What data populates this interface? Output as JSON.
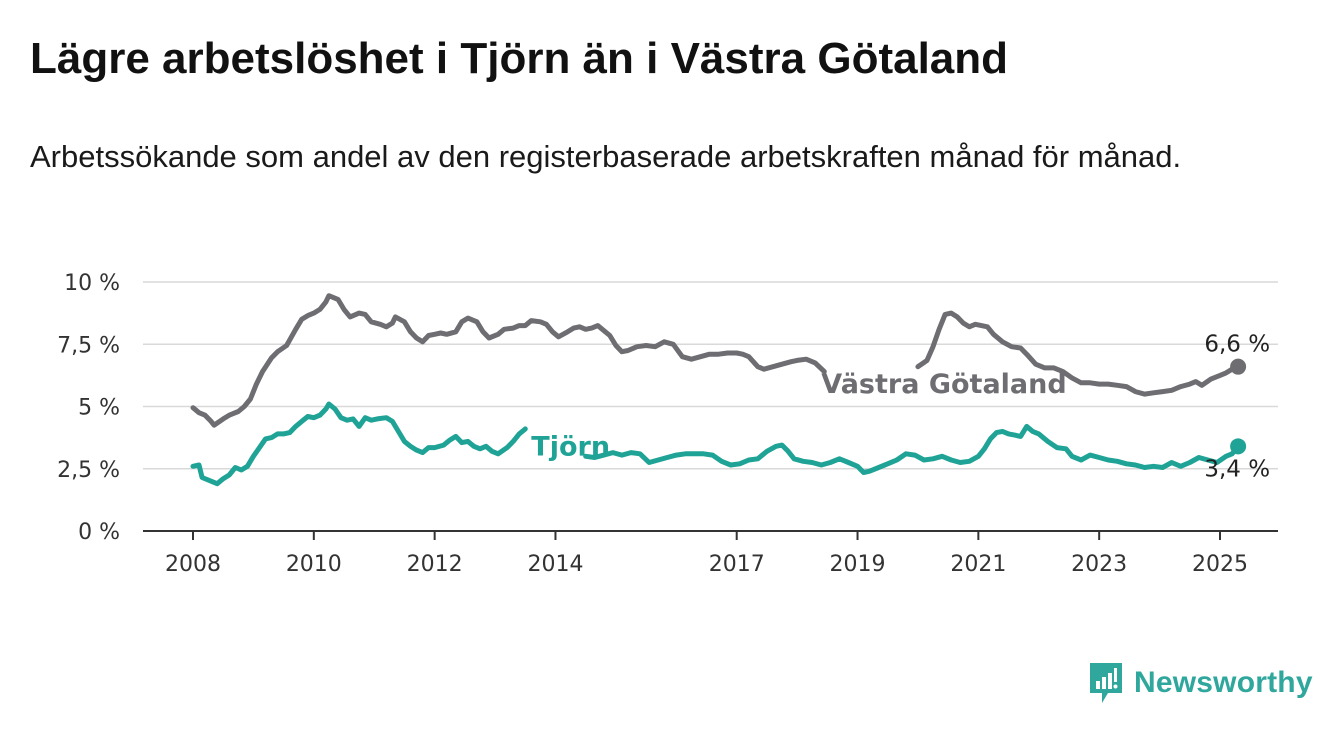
{
  "header": {
    "title": "Lägre arbetslöshet i Tjörn än i Västra Götaland",
    "subtitle": "Arbetssökande som andel av den registerbaserade arbetskraften månad för månad."
  },
  "brand": {
    "name": "Newsworthy",
    "icon": "newsworthy-logo-icon",
    "color": "#2fa79d"
  },
  "chart_data": {
    "type": "line",
    "title": "Lägre arbetslöshet i Tjörn än i Västra Götaland",
    "subtitle": "Arbetssökande som andel av den registerbaserade arbetskraften månad för månad.",
    "xlabel": "",
    "ylabel": "",
    "xlim": [
      2007.7,
      2026.0
    ],
    "ylim": [
      0,
      10
    ],
    "grid": true,
    "legend": "inline labels",
    "x_ticks": [
      {
        "value": 2008,
        "label": "2008"
      },
      {
        "value": 2010,
        "label": "2010"
      },
      {
        "value": 2012,
        "label": "2012"
      },
      {
        "value": 2014,
        "label": "2014"
      },
      {
        "value": 2017,
        "label": "2017"
      },
      {
        "value": 2019,
        "label": "2019"
      },
      {
        "value": 2021,
        "label": "2021"
      },
      {
        "value": 2023,
        "label": "2023"
      },
      {
        "value": 2025,
        "label": "2025"
      }
    ],
    "y_ticks": [
      {
        "value": 0,
        "label": "0 %"
      },
      {
        "value": 2.5,
        "label": "2,5 %"
      },
      {
        "value": 5,
        "label": "5 %"
      },
      {
        "value": 7.5,
        "label": "7,5 %"
      },
      {
        "value": 10,
        "label": "10 %"
      }
    ],
    "series": [
      {
        "name": "Västra Götaland",
        "color": "#6d6d72",
        "end_label": "6,6 %",
        "points": [
          [
            2008.0,
            4.95
          ],
          [
            2008.1,
            4.75
          ],
          [
            2008.2,
            4.65
          ],
          [
            2008.3,
            4.4
          ],
          [
            2008.35,
            4.25
          ],
          [
            2008.5,
            4.5
          ],
          [
            2008.6,
            4.65
          ],
          [
            2008.75,
            4.8
          ],
          [
            2008.85,
            5.0
          ],
          [
            2008.95,
            5.3
          ],
          [
            2009.05,
            5.9
          ],
          [
            2009.15,
            6.4
          ],
          [
            2009.3,
            6.95
          ],
          [
            2009.4,
            7.2
          ],
          [
            2009.55,
            7.45
          ],
          [
            2009.7,
            8.1
          ],
          [
            2009.8,
            8.5
          ],
          [
            2009.9,
            8.65
          ],
          [
            2010.0,
            8.75
          ],
          [
            2010.1,
            8.9
          ],
          [
            2010.2,
            9.2
          ],
          [
            2010.25,
            9.45
          ],
          [
            2010.4,
            9.3
          ],
          [
            2010.5,
            8.9
          ],
          [
            2010.6,
            8.6
          ],
          [
            2010.75,
            8.75
          ],
          [
            2010.85,
            8.7
          ],
          [
            2010.95,
            8.4
          ],
          [
            2011.1,
            8.3
          ],
          [
            2011.2,
            8.2
          ],
          [
            2011.3,
            8.35
          ],
          [
            2011.35,
            8.6
          ],
          [
            2011.5,
            8.4
          ],
          [
            2011.6,
            8.0
          ],
          [
            2011.7,
            7.75
          ],
          [
            2011.8,
            7.6
          ],
          [
            2011.9,
            7.85
          ],
          [
            2012.0,
            7.9
          ],
          [
            2012.1,
            7.95
          ],
          [
            2012.2,
            7.9
          ],
          [
            2012.35,
            8.0
          ],
          [
            2012.45,
            8.4
          ],
          [
            2012.55,
            8.55
          ],
          [
            2012.7,
            8.4
          ],
          [
            2012.8,
            8.0
          ],
          [
            2012.9,
            7.75
          ],
          [
            2013.05,
            7.9
          ],
          [
            2013.15,
            8.1
          ],
          [
            2013.3,
            8.15
          ],
          [
            2013.4,
            8.25
          ],
          [
            2013.5,
            8.25
          ],
          [
            2013.6,
            8.45
          ],
          [
            2013.75,
            8.4
          ],
          [
            2013.85,
            8.3
          ],
          [
            2013.95,
            8.0
          ],
          [
            2014.05,
            7.8
          ],
          [
            2014.2,
            8.0
          ],
          [
            2014.3,
            8.15
          ],
          [
            2014.4,
            8.2
          ],
          [
            2014.5,
            8.1
          ],
          [
            2014.6,
            8.15
          ],
          [
            2014.7,
            8.25
          ],
          [
            2014.8,
            8.05
          ],
          [
            2014.9,
            7.85
          ],
          [
            2015.0,
            7.45
          ],
          [
            2015.1,
            7.2
          ],
          [
            2015.2,
            7.25
          ],
          [
            2015.35,
            7.4
          ],
          [
            2015.5,
            7.45
          ],
          [
            2015.65,
            7.4
          ],
          [
            2015.8,
            7.6
          ],
          [
            2015.95,
            7.5
          ],
          [
            2016.1,
            7.0
          ],
          [
            2016.25,
            6.9
          ],
          [
            2016.4,
            7.0
          ],
          [
            2016.55,
            7.1
          ],
          [
            2016.7,
            7.1
          ],
          [
            2016.85,
            7.15
          ],
          [
            2017.0,
            7.15
          ],
          [
            2017.1,
            7.1
          ],
          [
            2017.2,
            7.0
          ],
          [
            2017.35,
            6.6
          ],
          [
            2017.45,
            6.5
          ],
          [
            2017.6,
            6.6
          ],
          [
            2017.75,
            6.7
          ],
          [
            2017.9,
            6.8
          ],
          [
            2018.0,
            6.85
          ],
          [
            2018.15,
            6.9
          ],
          [
            2018.3,
            6.75
          ],
          [
            2018.45,
            6.4
          ]
        ],
        "points_after_label": [
          [
            2020.0,
            6.6
          ],
          [
            2020.15,
            6.85
          ],
          [
            2020.25,
            7.4
          ],
          [
            2020.35,
            8.1
          ],
          [
            2020.45,
            8.7
          ],
          [
            2020.55,
            8.75
          ],
          [
            2020.65,
            8.6
          ],
          [
            2020.75,
            8.35
          ],
          [
            2020.85,
            8.2
          ],
          [
            2020.95,
            8.3
          ],
          [
            2021.05,
            8.25
          ],
          [
            2021.15,
            8.2
          ],
          [
            2021.25,
            7.9
          ],
          [
            2021.4,
            7.6
          ],
          [
            2021.55,
            7.4
          ],
          [
            2021.7,
            7.35
          ],
          [
            2021.8,
            7.1
          ],
          [
            2021.95,
            6.7
          ],
          [
            2022.1,
            6.55
          ],
          [
            2022.25,
            6.55
          ],
          [
            2022.4,
            6.4
          ],
          [
            2022.55,
            6.15
          ],
          [
            2022.7,
            5.95
          ],
          [
            2022.85,
            5.95
          ],
          [
            2023.0,
            5.9
          ],
          [
            2023.15,
            5.9
          ],
          [
            2023.3,
            5.85
          ],
          [
            2023.45,
            5.8
          ],
          [
            2023.6,
            5.6
          ],
          [
            2023.75,
            5.5
          ],
          [
            2023.9,
            5.55
          ],
          [
            2024.05,
            5.6
          ],
          [
            2024.2,
            5.65
          ],
          [
            2024.35,
            5.8
          ],
          [
            2024.5,
            5.9
          ],
          [
            2024.6,
            6.0
          ],
          [
            2024.7,
            5.85
          ],
          [
            2024.85,
            6.1
          ],
          [
            2025.0,
            6.25
          ],
          [
            2025.1,
            6.35
          ],
          [
            2025.2,
            6.5
          ],
          [
            2025.3,
            6.6
          ]
        ],
        "end_point": [
          2025.3,
          6.6
        ]
      },
      {
        "name": "Tjörn",
        "color": "#1fa396",
        "end_label": "3,4 %",
        "points": [
          [
            2008.0,
            2.6
          ],
          [
            2008.1,
            2.65
          ],
          [
            2008.15,
            2.15
          ],
          [
            2008.3,
            2.0
          ],
          [
            2008.4,
            1.9
          ],
          [
            2008.5,
            2.1
          ],
          [
            2008.6,
            2.25
          ],
          [
            2008.7,
            2.55
          ],
          [
            2008.8,
            2.45
          ],
          [
            2008.9,
            2.6
          ],
          [
            2009.0,
            3.0
          ],
          [
            2009.1,
            3.35
          ],
          [
            2009.2,
            3.7
          ],
          [
            2009.3,
            3.75
          ],
          [
            2009.4,
            3.9
          ],
          [
            2009.5,
            3.9
          ],
          [
            2009.6,
            3.95
          ],
          [
            2009.7,
            4.2
          ],
          [
            2009.8,
            4.4
          ],
          [
            2009.9,
            4.6
          ],
          [
            2010.0,
            4.55
          ],
          [
            2010.1,
            4.65
          ],
          [
            2010.2,
            4.9
          ],
          [
            2010.25,
            5.1
          ],
          [
            2010.35,
            4.9
          ],
          [
            2010.45,
            4.55
          ],
          [
            2010.55,
            4.45
          ],
          [
            2010.65,
            4.5
          ],
          [
            2010.75,
            4.2
          ],
          [
            2010.85,
            4.55
          ],
          [
            2010.95,
            4.45
          ],
          [
            2011.05,
            4.5
          ],
          [
            2011.2,
            4.55
          ],
          [
            2011.3,
            4.4
          ],
          [
            2011.4,
            4.0
          ],
          [
            2011.5,
            3.6
          ],
          [
            2011.6,
            3.4
          ],
          [
            2011.7,
            3.25
          ],
          [
            2011.8,
            3.15
          ],
          [
            2011.9,
            3.35
          ],
          [
            2012.0,
            3.35
          ],
          [
            2012.15,
            3.45
          ],
          [
            2012.25,
            3.65
          ],
          [
            2012.35,
            3.8
          ],
          [
            2012.45,
            3.55
          ],
          [
            2012.55,
            3.6
          ],
          [
            2012.65,
            3.4
          ],
          [
            2012.75,
            3.3
          ],
          [
            2012.85,
            3.4
          ],
          [
            2012.95,
            3.2
          ],
          [
            2013.05,
            3.1
          ],
          [
            2013.2,
            3.35
          ],
          [
            2013.3,
            3.6
          ],
          [
            2013.4,
            3.9
          ],
          [
            2013.5,
            4.1
          ]
        ],
        "points_after_label": [
          [
            2014.5,
            3.0
          ],
          [
            2014.65,
            2.95
          ],
          [
            2014.8,
            3.05
          ],
          [
            2014.95,
            3.15
          ],
          [
            2015.1,
            3.05
          ],
          [
            2015.25,
            3.15
          ],
          [
            2015.4,
            3.1
          ],
          [
            2015.55,
            2.75
          ],
          [
            2015.7,
            2.85
          ],
          [
            2015.85,
            2.95
          ],
          [
            2016.0,
            3.05
          ],
          [
            2016.15,
            3.1
          ],
          [
            2016.3,
            3.1
          ],
          [
            2016.45,
            3.1
          ],
          [
            2016.6,
            3.05
          ],
          [
            2016.75,
            2.8
          ],
          [
            2016.9,
            2.65
          ],
          [
            2017.05,
            2.7
          ],
          [
            2017.2,
            2.85
          ],
          [
            2017.35,
            2.9
          ],
          [
            2017.5,
            3.2
          ],
          [
            2017.65,
            3.4
          ],
          [
            2017.75,
            3.45
          ],
          [
            2017.85,
            3.2
          ],
          [
            2017.95,
            2.9
          ],
          [
            2018.1,
            2.8
          ],
          [
            2018.25,
            2.75
          ],
          [
            2018.4,
            2.65
          ],
          [
            2018.55,
            2.75
          ],
          [
            2018.7,
            2.9
          ],
          [
            2018.85,
            2.75
          ],
          [
            2019.0,
            2.6
          ],
          [
            2019.1,
            2.35
          ],
          [
            2019.2,
            2.4
          ],
          [
            2019.35,
            2.55
          ],
          [
            2019.5,
            2.7
          ],
          [
            2019.65,
            2.85
          ],
          [
            2019.8,
            3.1
          ],
          [
            2019.95,
            3.05
          ],
          [
            2020.1,
            2.85
          ],
          [
            2020.25,
            2.9
          ],
          [
            2020.4,
            3.0
          ],
          [
            2020.55,
            2.85
          ],
          [
            2020.7,
            2.75
          ],
          [
            2020.85,
            2.8
          ],
          [
            2021.0,
            3.0
          ],
          [
            2021.1,
            3.3
          ],
          [
            2021.2,
            3.7
          ],
          [
            2021.3,
            3.95
          ],
          [
            2021.4,
            4.0
          ],
          [
            2021.5,
            3.9
          ],
          [
            2021.6,
            3.85
          ],
          [
            2021.7,
            3.8
          ],
          [
            2021.8,
            4.2
          ],
          [
            2021.9,
            4.0
          ],
          [
            2022.0,
            3.9
          ],
          [
            2022.15,
            3.6
          ],
          [
            2022.3,
            3.35
          ],
          [
            2022.45,
            3.3
          ],
          [
            2022.55,
            3.0
          ],
          [
            2022.7,
            2.85
          ],
          [
            2022.85,
            3.05
          ],
          [
            2023.0,
            2.95
          ],
          [
            2023.15,
            2.85
          ],
          [
            2023.3,
            2.8
          ],
          [
            2023.45,
            2.7
          ],
          [
            2023.6,
            2.65
          ],
          [
            2023.75,
            2.55
          ],
          [
            2023.9,
            2.6
          ],
          [
            2024.05,
            2.55
          ],
          [
            2024.2,
            2.75
          ],
          [
            2024.35,
            2.6
          ],
          [
            2024.5,
            2.75
          ],
          [
            2024.65,
            2.95
          ],
          [
            2024.8,
            2.85
          ],
          [
            2024.95,
            2.75
          ],
          [
            2025.1,
            3.0
          ],
          [
            2025.2,
            3.1
          ],
          [
            2025.3,
            3.4
          ]
        ],
        "end_point": [
          2025.3,
          3.4
        ]
      }
    ]
  }
}
